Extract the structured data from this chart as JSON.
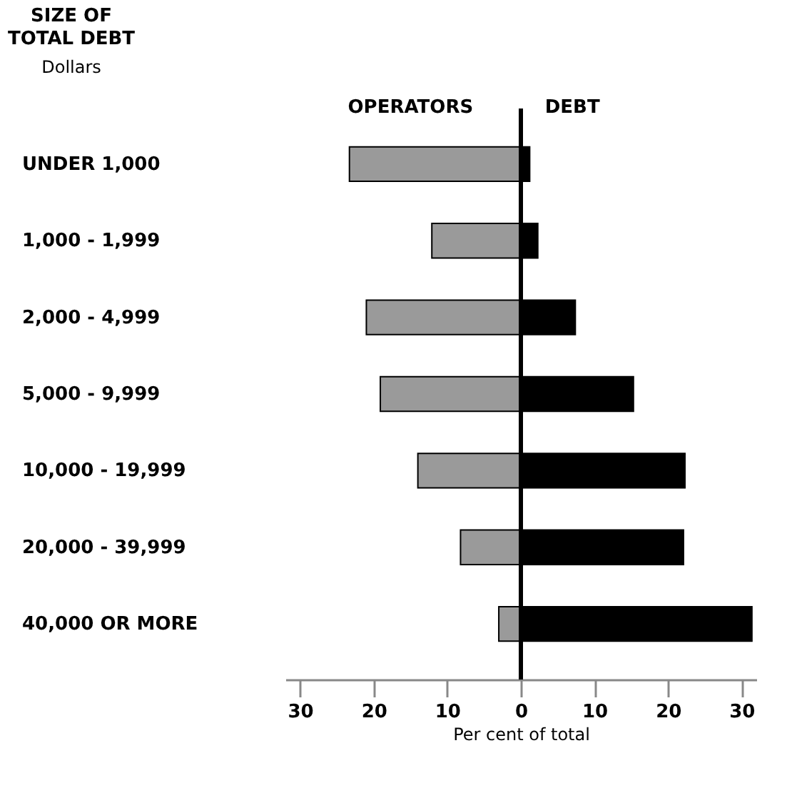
{
  "chart_data": {
    "type": "bar",
    "orientation": "horizontal",
    "ylabel": "SIZE OF TOTAL DEBT",
    "subtitle": "Dollars",
    "xlabel": "Per cent of total",
    "categories": [
      "UNDER 1,000",
      "1,000 - 1,999",
      "2,000 - 4,999",
      "5,000 - 9,999",
      "10,000 - 19,999",
      "20,000 - 39,999",
      "40,000 OR MORE"
    ],
    "series": [
      {
        "name": "OPERATORS",
        "color": "#9a9a9a",
        "values": [
          -23.3,
          -12.1,
          -21,
          -19.1,
          -14,
          -8.2,
          -3
        ]
      },
      {
        "name": "DEBT",
        "color": "#000000",
        "values": [
          1.2,
          2.3,
          7.4,
          15.3,
          22.3,
          22.1,
          31.4
        ]
      }
    ],
    "xlim": [
      -32,
      32
    ],
    "xticks": [
      {
        "value": -30,
        "label": "30"
      },
      {
        "value": -20,
        "label": "20"
      },
      {
        "value": -10,
        "label": "10"
      },
      0,
      10,
      20,
      30
    ],
    "ref_lines": [
      {
        "axis": "x",
        "value": 0,
        "color": "#000000"
      }
    ],
    "stacked": true,
    "grid": false,
    "legend": false
  }
}
